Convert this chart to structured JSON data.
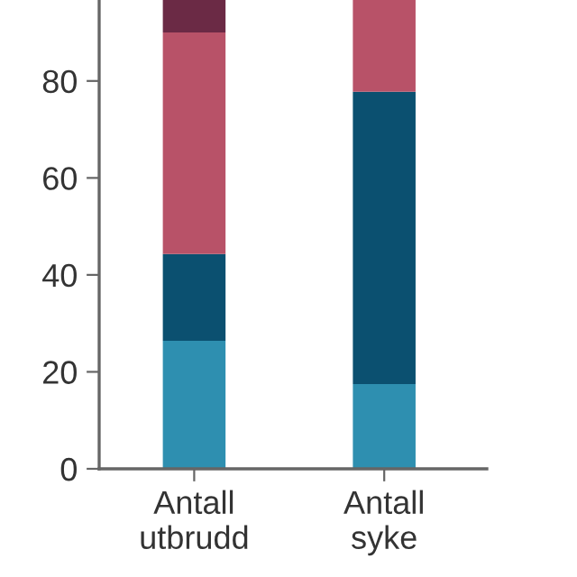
{
  "chart_data": {
    "type": "bar",
    "stacked": true,
    "categories": [
      "Antall\nutbrudd",
      "Antall\nsyke"
    ],
    "series": [
      {
        "color": "#2e8fb0",
        "values": [
          26.4,
          17.5
        ]
      },
      {
        "color": "#0b5070",
        "values": [
          17.9,
          60.3
        ]
      },
      {
        "color": "#b85268",
        "values": [
          45.7,
          18.9
        ]
      },
      {
        "color": "#6b2a45",
        "values": [
          6.7,
          0
        ]
      }
    ],
    "ylim": [
      0,
      96.7
    ],
    "yticks": [
      0,
      20,
      40,
      60,
      80
    ],
    "grid": false,
    "legend": false
  }
}
